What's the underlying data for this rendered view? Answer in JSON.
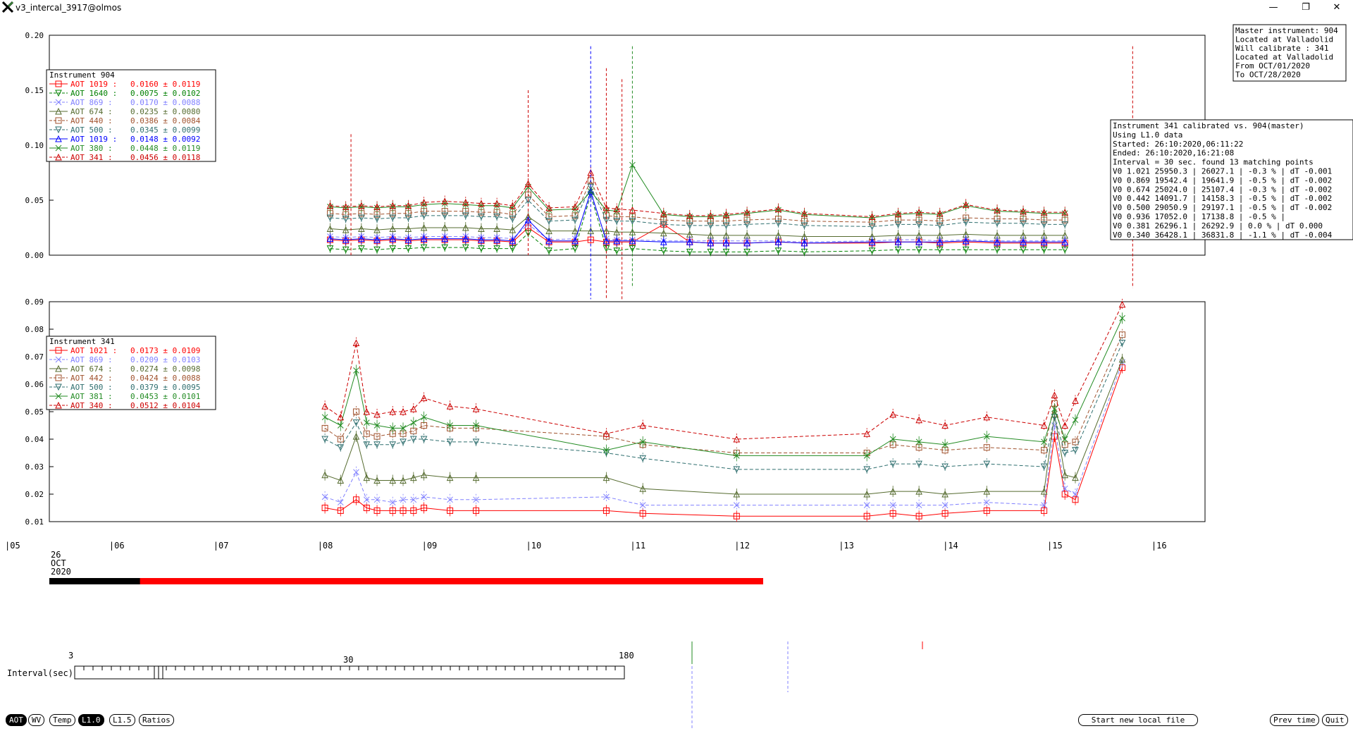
{
  "window": {
    "title": "v3_intercal_3917@olmos",
    "controls": {
      "minimize": "—",
      "maximize": "❐",
      "close": "✕"
    }
  },
  "info_box": {
    "lines": [
      "Master instrument: 904",
      " Located at Valladolid",
      "Will calibrate   : 341",
      " Located at Valladolid",
      "      From OCT/01/2020",
      "        To OCT/28/2020"
    ]
  },
  "calib_box": {
    "lines": [
      "Instrument 341 calibrated vs. 904(master)",
      "Using L1.0 data",
      "Started: 26:10:2020,06:11:22",
      "Ended: 26:10:2020,16:21:08",
      "Interval = 30 sec. found 13 matching points",
      "V0 1.021  25950.3 | 26027.1 | -0.3 % | dT -0.001",
      "V0 0.869  19542.4 | 19641.9 | -0.5 % | dT -0.002",
      "V0 0.674  25024.0 | 25107.4 | -0.3 % | dT -0.002",
      "V0 0.442  14091.7 | 14158.3 | -0.5 % | dT -0.002",
      "V0 0.500  29050.9 | 29197.1 | -0.5 % | dT -0.002",
      "V0 0.936  17052.0 | 17138.8 | -0.5 % |",
      "V0 0.381  26296.1 | 26292.9 |  0.0 % | dT 0.000",
      "V0 0.340  36428.1 | 36831.8 | -1.1 % | dT -0.004"
    ]
  },
  "time_axis": {
    "ticks": [
      "|05",
      "|06",
      "|07",
      "|08",
      "|09",
      "|10",
      "|11",
      "|12",
      "|13",
      "|14",
      "|15",
      "|16"
    ],
    "date_label": [
      "26",
      "OCT",
      "2020"
    ]
  },
  "chart_data": [
    {
      "type": "line",
      "title": "Instrument 904",
      "ylim": [
        0.0,
        0.2
      ],
      "yticks": [
        "0.20",
        "0.15",
        "0.10",
        "0.05",
        "0.00"
      ],
      "xlim": [
        5.0,
        16.0
      ],
      "grid": false,
      "legend_position": "top-left",
      "x": [
        8.1,
        8.25,
        8.4,
        8.55,
        8.7,
        8.85,
        9.0,
        9.2,
        9.4,
        9.55,
        9.7,
        9.85,
        10.0,
        10.2,
        10.45,
        10.6,
        10.75,
        10.85,
        11.0,
        11.3,
        11.55,
        11.75,
        11.9,
        12.1,
        12.4,
        12.65,
        13.3,
        13.55,
        13.75,
        13.95,
        14.2,
        14.5,
        14.75,
        14.95,
        15.15
      ],
      "series": [
        {
          "name": "AOT 1019",
          "stat": "0.0160 ± 0.0119",
          "color": "#ff0000",
          "marker": "square",
          "dash": false,
          "values": [
            0.014,
            0.013,
            0.014,
            0.013,
            0.014,
            0.013,
            0.014,
            0.014,
            0.014,
            0.013,
            0.013,
            0.012,
            0.025,
            0.012,
            0.012,
            0.014,
            0.012,
            0.012,
            0.012,
            0.028,
            0.012,
            0.011,
            0.011,
            0.011,
            0.012,
            0.011,
            0.011,
            0.012,
            0.012,
            0.011,
            0.012,
            0.011,
            0.011,
            0.011,
            0.011
          ]
        },
        {
          "name": "AOT 1640",
          "stat": "0.0075 ± 0.0102",
          "color": "#008000",
          "marker": "triangle-down",
          "dash": true,
          "values": [
            0.006,
            0.005,
            0.006,
            0.005,
            0.006,
            0.006,
            0.007,
            0.007,
            0.007,
            0.006,
            0.006,
            0.006,
            0.02,
            0.004,
            0.006,
            0.055,
            0.006,
            0.004,
            0.006,
            0.004,
            0.003,
            0.003,
            0.003,
            0.003,
            0.004,
            0.003,
            0.004,
            0.005,
            0.005,
            0.005,
            0.005,
            0.005,
            0.005,
            0.005,
            0.005
          ]
        },
        {
          "name": "AOT 869",
          "stat": "0.0170 ± 0.0088",
          "color": "#8080ff",
          "marker": "x",
          "dash": true,
          "values": [
            0.017,
            0.016,
            0.017,
            0.016,
            0.017,
            0.016,
            0.017,
            0.017,
            0.017,
            0.016,
            0.016,
            0.015,
            0.028,
            0.014,
            0.015,
            0.055,
            0.015,
            0.014,
            0.014,
            0.013,
            0.013,
            0.013,
            0.013,
            0.013,
            0.013,
            0.012,
            0.013,
            0.014,
            0.014,
            0.013,
            0.014,
            0.013,
            0.013,
            0.013,
            0.013
          ]
        },
        {
          "name": "AOT 674",
          "stat": "0.0235 ± 0.0080",
          "color": "#556b2f",
          "marker": "triangle",
          "dash": false,
          "values": [
            0.024,
            0.023,
            0.024,
            0.023,
            0.024,
            0.024,
            0.025,
            0.025,
            0.025,
            0.024,
            0.024,
            0.023,
            0.035,
            0.022,
            0.022,
            0.022,
            0.022,
            0.021,
            0.021,
            0.02,
            0.019,
            0.018,
            0.018,
            0.018,
            0.018,
            0.017,
            0.017,
            0.018,
            0.018,
            0.018,
            0.019,
            0.018,
            0.018,
            0.018,
            0.018
          ]
        },
        {
          "name": "AOT 440",
          "stat": "0.0386 ± 0.0084",
          "color": "#a0522d",
          "marker": "square",
          "dash": true,
          "values": [
            0.038,
            0.037,
            0.038,
            0.037,
            0.038,
            0.038,
            0.04,
            0.04,
            0.04,
            0.039,
            0.039,
            0.037,
            0.055,
            0.035,
            0.036,
            0.068,
            0.036,
            0.035,
            0.035,
            0.032,
            0.031,
            0.031,
            0.031,
            0.032,
            0.033,
            0.031,
            0.03,
            0.032,
            0.032,
            0.031,
            0.034,
            0.033,
            0.033,
            0.032,
            0.032
          ]
        },
        {
          "name": "AOT 500",
          "stat": "0.0345 ± 0.0099",
          "color": "#2f6f6f",
          "marker": "triangle-down",
          "dash": true,
          "values": [
            0.034,
            0.033,
            0.034,
            0.033,
            0.034,
            0.034,
            0.036,
            0.036,
            0.036,
            0.035,
            0.035,
            0.033,
            0.05,
            0.031,
            0.032,
            0.062,
            0.032,
            0.031,
            0.031,
            0.028,
            0.027,
            0.027,
            0.027,
            0.028,
            0.029,
            0.027,
            0.026,
            0.028,
            0.028,
            0.027,
            0.03,
            0.029,
            0.029,
            0.028,
            0.028
          ]
        },
        {
          "name": "AOT 1019",
          "stat": "0.0148 ± 0.0092",
          "color": "#0000ff",
          "marker": "triangle",
          "dash": false,
          "values": [
            0.015,
            0.014,
            0.015,
            0.014,
            0.015,
            0.014,
            0.015,
            0.015,
            0.015,
            0.014,
            0.014,
            0.013,
            0.032,
            0.013,
            0.013,
            0.058,
            0.013,
            0.013,
            0.013,
            0.012,
            0.012,
            0.011,
            0.011,
            0.011,
            0.012,
            0.011,
            0.012,
            0.012,
            0.012,
            0.012,
            0.013,
            0.012,
            0.012,
            0.012,
            0.012
          ]
        },
        {
          "name": "AOT 380",
          "stat": "0.0448 ± 0.0119",
          "color": "#228b22",
          "marker": "x",
          "dash": false,
          "values": [
            0.044,
            0.043,
            0.044,
            0.043,
            0.044,
            0.044,
            0.046,
            0.047,
            0.046,
            0.045,
            0.045,
            0.043,
            0.062,
            0.041,
            0.042,
            0.058,
            0.041,
            0.04,
            0.082,
            0.037,
            0.035,
            0.035,
            0.036,
            0.038,
            0.041,
            0.037,
            0.034,
            0.037,
            0.038,
            0.037,
            0.045,
            0.04,
            0.039,
            0.038,
            0.038
          ]
        },
        {
          "name": "AOT 341",
          "stat": "0.0456 ± 0.0118",
          "color": "#cc0000",
          "marker": "triangle",
          "dash": true,
          "values": [
            0.045,
            0.044,
            0.045,
            0.044,
            0.045,
            0.045,
            0.048,
            0.049,
            0.048,
            0.047,
            0.047,
            0.045,
            0.065,
            0.043,
            0.044,
            0.075,
            0.043,
            0.042,
            0.041,
            0.038,
            0.036,
            0.036,
            0.037,
            0.039,
            0.042,
            0.038,
            0.035,
            0.038,
            0.039,
            0.038,
            0.046,
            0.041,
            0.04,
            0.039,
            0.039
          ]
        }
      ]
    },
    {
      "type": "line",
      "title": "Instrument 341",
      "ylim": [
        0.01,
        0.09
      ],
      "yticks": [
        "0.09",
        "0.08",
        "0.07",
        "0.06",
        "0.05",
        "0.04",
        "0.03",
        "0.02",
        "0.01"
      ],
      "xlim": [
        5.0,
        16.0
      ],
      "grid": false,
      "legend_position": "top-left",
      "x": [
        8.05,
        8.2,
        8.35,
        8.45,
        8.55,
        8.7,
        8.8,
        8.9,
        9.0,
        9.25,
        9.5,
        10.75,
        11.1,
        12.0,
        13.25,
        13.5,
        13.75,
        14.0,
        14.4,
        14.95,
        15.05,
        15.15,
        15.25,
        15.7
      ],
      "series": [
        {
          "name": "AOT 1021",
          "stat": "0.0173 ± 0.0109",
          "color": "#ff0000",
          "marker": "square",
          "dash": false,
          "values": [
            0.015,
            0.014,
            0.018,
            0.015,
            0.014,
            0.014,
            0.014,
            0.014,
            0.015,
            0.014,
            0.014,
            0.014,
            0.013,
            0.012,
            0.012,
            0.013,
            0.012,
            0.013,
            0.014,
            0.014,
            0.041,
            0.02,
            0.018,
            0.066
          ]
        },
        {
          "name": "AOT 869",
          "stat": "0.0209 ± 0.0103",
          "color": "#8080ff",
          "marker": "x",
          "dash": true,
          "values": [
            0.019,
            0.017,
            0.028,
            0.018,
            0.018,
            0.017,
            0.018,
            0.018,
            0.019,
            0.018,
            0.018,
            0.019,
            0.016,
            0.016,
            0.016,
            0.016,
            0.016,
            0.016,
            0.017,
            0.016,
            0.045,
            0.022,
            0.02,
            0.068
          ]
        },
        {
          "name": "AOT 674",
          "stat": "0.0274 ± 0.0098",
          "color": "#556b2f",
          "marker": "triangle",
          "dash": false,
          "values": [
            0.027,
            0.025,
            0.041,
            0.026,
            0.025,
            0.025,
            0.025,
            0.026,
            0.027,
            0.026,
            0.026,
            0.026,
            0.022,
            0.02,
            0.02,
            0.021,
            0.021,
            0.02,
            0.021,
            0.021,
            0.049,
            0.027,
            0.026,
            0.069
          ]
        },
        {
          "name": "AOT 442",
          "stat": "0.0424 ± 0.0088",
          "color": "#a0522d",
          "marker": "square",
          "dash": true,
          "values": [
            0.044,
            0.04,
            0.05,
            0.042,
            0.041,
            0.042,
            0.042,
            0.043,
            0.045,
            0.044,
            0.044,
            0.041,
            0.038,
            0.035,
            0.035,
            0.038,
            0.037,
            0.036,
            0.037,
            0.036,
            0.053,
            0.038,
            0.039,
            0.078
          ]
        },
        {
          "name": "AOT 500",
          "stat": "0.0379 ± 0.0095",
          "color": "#2f6f6f",
          "marker": "triangle-down",
          "dash": true,
          "values": [
            0.04,
            0.037,
            0.046,
            0.038,
            0.038,
            0.038,
            0.039,
            0.04,
            0.04,
            0.039,
            0.039,
            0.035,
            0.033,
            0.029,
            0.029,
            0.031,
            0.031,
            0.03,
            0.031,
            0.03,
            0.048,
            0.035,
            0.036,
            0.075
          ]
        },
        {
          "name": "AOT 381",
          "stat": "0.0453 ± 0.0101",
          "color": "#228b22",
          "marker": "x",
          "dash": false,
          "values": [
            0.048,
            0.045,
            0.065,
            0.046,
            0.045,
            0.044,
            0.044,
            0.046,
            0.048,
            0.045,
            0.045,
            0.036,
            0.039,
            0.034,
            0.034,
            0.04,
            0.039,
            0.038,
            0.041,
            0.039,
            0.051,
            0.04,
            0.047,
            0.084
          ]
        },
        {
          "name": "AOT 340",
          "stat": "0.0512 ± 0.0104",
          "color": "#cc0000",
          "marker": "triangle",
          "dash": true,
          "values": [
            0.052,
            0.048,
            0.075,
            0.05,
            0.049,
            0.05,
            0.05,
            0.051,
            0.055,
            0.052,
            0.051,
            0.042,
            0.045,
            0.04,
            0.042,
            0.049,
            0.047,
            0.045,
            0.048,
            0.045,
            0.056,
            0.045,
            0.054,
            0.089
          ]
        }
      ]
    }
  ],
  "slider": {
    "label": "Interval(sec)",
    "min_label": "3",
    "mid_label": "30",
    "max_label": "180",
    "value": 30
  },
  "buttons": {
    "aot": "AOT",
    "wv": "WV",
    "temp": "Temp",
    "l10": "L1.0",
    "l15": "L1.5",
    "ratios": "Ratios",
    "start_new": "Start new local file",
    "prev_time": "Prev time",
    "quit": "Quit"
  },
  "colors": {
    "progress_done": "#000000",
    "progress_remaining": "#ff0000"
  },
  "progress_fraction": 0.127
}
